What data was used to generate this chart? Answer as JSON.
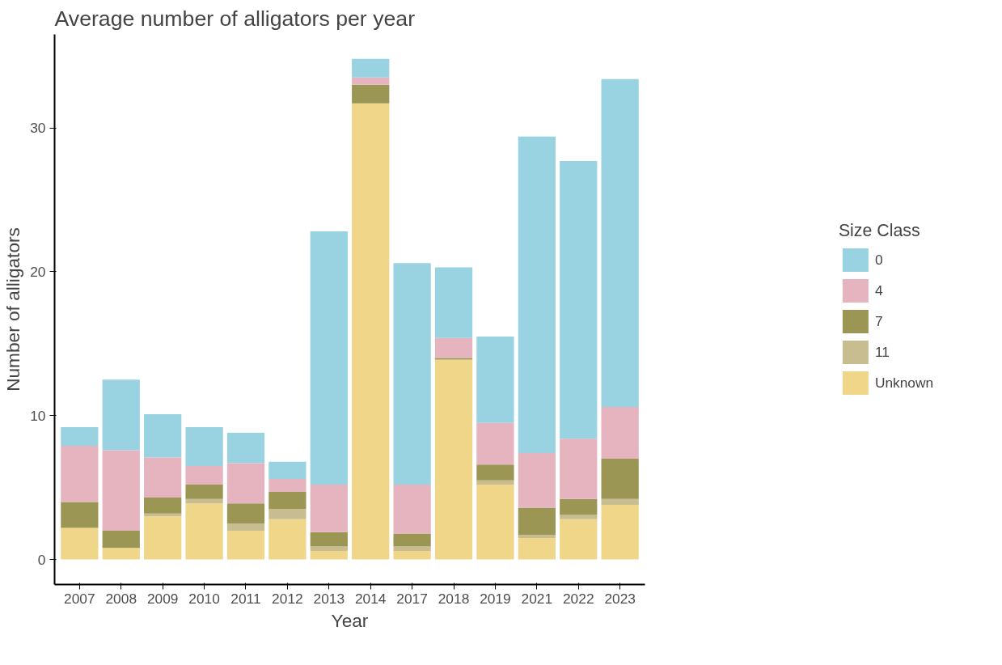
{
  "chart_data": {
    "type": "bar",
    "stacked": true,
    "title": "Average number of alligators per year",
    "xlabel": "Year",
    "ylabel": "Number of alligators",
    "legend_title": "Size Class",
    "legend": "right",
    "grid": false,
    "categories": [
      "2007",
      "2008",
      "2009",
      "2010",
      "2011",
      "2012",
      "2013",
      "2014",
      "2017",
      "2018",
      "2019",
      "2021",
      "2022",
      "2023"
    ],
    "ylim": [
      -1.74,
      36.5
    ],
    "yticks": [
      0,
      10,
      20,
      30
    ],
    "series": [
      {
        "name": "Unknown",
        "color": "#efd689",
        "values": [
          2.2,
          0.8,
          3.0,
          3.9,
          2.0,
          2.8,
          0.6,
          31.7,
          0.6,
          13.9,
          5.2,
          1.5,
          2.8,
          3.8
        ]
      },
      {
        "name": "11",
        "color": "#c8bd91",
        "values": [
          0,
          0,
          0.2,
          0.3,
          0.5,
          0.7,
          0.3,
          0,
          0.3,
          0,
          0.3,
          0.2,
          0.3,
          0.4
        ]
      },
      {
        "name": "7",
        "color": "#9c9655",
        "values": [
          1.8,
          1.2,
          1.1,
          1.0,
          1.4,
          1.2,
          1.0,
          1.3,
          0.9,
          0.1,
          1.1,
          1.9,
          1.1,
          2.8
        ]
      },
      {
        "name": "4",
        "color": "#e5b4bf",
        "values": [
          3.9,
          5.6,
          2.8,
          1.3,
          2.8,
          0.9,
          3.3,
          0.5,
          3.4,
          1.4,
          2.9,
          3.8,
          4.2,
          3.6
        ]
      },
      {
        "name": "0",
        "color": "#99d3e2",
        "values": [
          1.3,
          4.9,
          3.0,
          2.7,
          2.1,
          1.2,
          17.6,
          1.3,
          15.4,
          4.9,
          6.0,
          22.0,
          19.3,
          22.8
        ]
      }
    ]
  }
}
